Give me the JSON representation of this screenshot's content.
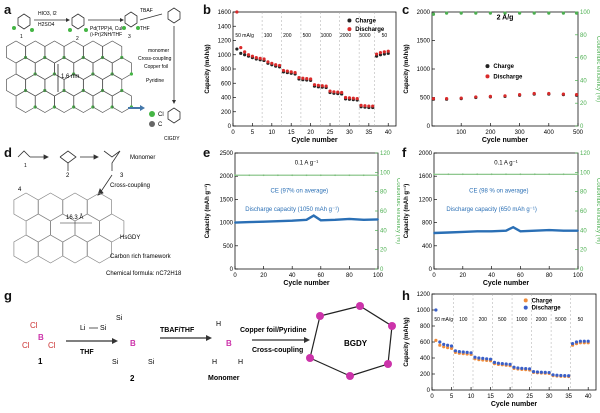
{
  "panel_labels": [
    "a",
    "b",
    "c",
    "d",
    "e",
    "f",
    "g",
    "h"
  ],
  "panel_a": {
    "reagents": [
      "HIO3, I2",
      "H2SO4",
      "Pd(TPP)4, CuI",
      "(i-Pr)2NH/THF",
      "TBAF",
      "THF",
      "monomer",
      "Copper foil",
      "Pyridine",
      "Cross-coupling"
    ],
    "compounds": [
      "1",
      "2",
      "3",
      "ClGDY"
    ],
    "distance": "1.6 nm",
    "legend": [
      {
        "symbol": "Cl",
        "color": "#44b544"
      },
      {
        "symbol": "C",
        "color": "#666666"
      }
    ],
    "arrow": "= Cl  = C"
  },
  "panel_d": {
    "labels": [
      "Monomer",
      "Cross-coupling",
      "HsGDY",
      "Carbon rich framework",
      "Chemical formula: nC72H18"
    ],
    "distance": "16.3 Å",
    "numbers": [
      "1",
      "2",
      "3",
      "4"
    ]
  },
  "panel_g": {
    "steps": [
      "TBAF/THF",
      "Copper foil/Pyridine",
      "Cross-coupling",
      "THF"
    ],
    "names": [
      "Monomer",
      "BGDY"
    ],
    "numbers": [
      "1",
      "2"
    ],
    "atoms": [
      "B",
      "Cl",
      "Li",
      "Si",
      "H"
    ]
  },
  "chart_data": [
    {
      "id": "b",
      "type": "scatter",
      "ylabel": "Capacity (mAh/g)",
      "xlabel": "Cycle number",
      "xlim": [
        0,
        42
      ],
      "ylim": [
        0,
        1600
      ],
      "xticks": [
        0,
        5,
        10,
        15,
        20,
        25,
        30,
        35,
        40
      ],
      "yticks": [
        0,
        200,
        400,
        600,
        800,
        1000,
        1200,
        1400,
        1600
      ],
      "rate_labels": [
        "50 mA/g",
        "100",
        "200",
        "500",
        "1000",
        "2000",
        "5000",
        "50"
      ],
      "series": [
        {
          "name": "Charge",
          "color": "#222222",
          "x": [
            1,
            2,
            3,
            4,
            5,
            6,
            7,
            8,
            9,
            10,
            11,
            12,
            13,
            14,
            15,
            16,
            17,
            18,
            19,
            20,
            21,
            22,
            23,
            24,
            25,
            26,
            27,
            28,
            29,
            30,
            31,
            32,
            33,
            34,
            35,
            36,
            37,
            38,
            39,
            40
          ],
          "y": [
            1080,
            1020,
            1000,
            980,
            960,
            940,
            930,
            920,
            880,
            860,
            840,
            830,
            760,
            750,
            740,
            730,
            660,
            650,
            645,
            640,
            560,
            550,
            545,
            540,
            470,
            460,
            455,
            450,
            380,
            375,
            370,
            365,
            270,
            265,
            260,
            260,
            980,
            1000,
            1010,
            1020
          ]
        },
        {
          "name": "Discharge",
          "color": "#d92a2a",
          "x": [
            1,
            2,
            3,
            4,
            5,
            6,
            7,
            8,
            9,
            10,
            11,
            12,
            13,
            14,
            15,
            16,
            17,
            18,
            19,
            20,
            21,
            22,
            23,
            24,
            25,
            26,
            27,
            28,
            29,
            30,
            31,
            32,
            33,
            34,
            35,
            36,
            37,
            38,
            39,
            40
          ],
          "y": [
            1600,
            1100,
            1040,
            1000,
            980,
            960,
            950,
            940,
            900,
            880,
            860,
            850,
            780,
            770,
            760,
            750,
            680,
            670,
            665,
            660,
            580,
            570,
            565,
            560,
            490,
            480,
            475,
            470,
            400,
            395,
            390,
            385,
            290,
            285,
            280,
            280,
            1010,
            1030,
            1040,
            1050
          ]
        }
      ]
    },
    {
      "id": "c",
      "type": "scatter",
      "annotation": "2 A/g",
      "ylabel": "Capacity (mAh/g)",
      "y2label": "Coulombic efficiency (%)",
      "xlabel": "Cycle number",
      "xlim": [
        0,
        500
      ],
      "ylim": [
        0,
        2000
      ],
      "y2lim": [
        0,
        100
      ],
      "xticks": [
        100,
        200,
        300,
        400,
        500
      ],
      "yticks": [
        0,
        500,
        1000,
        1500,
        2000
      ],
      "y2ticks": [
        0,
        20,
        40,
        60,
        80,
        100
      ],
      "series": [
        {
          "name": "Charge",
          "color": "#222222",
          "x": [
            5,
            50,
            100,
            150,
            200,
            250,
            300,
            350,
            400,
            450,
            495
          ],
          "y": [
            470,
            470,
            480,
            500,
            510,
            520,
            540,
            560,
            560,
            550,
            540
          ]
        },
        {
          "name": "Discharge",
          "color": "#d92a2a",
          "x": [
            5,
            50,
            100,
            150,
            200,
            250,
            300,
            350,
            400,
            450,
            495
          ],
          "y": [
            480,
            480,
            490,
            510,
            520,
            530,
            550,
            570,
            570,
            560,
            550
          ]
        },
        {
          "name": "CE",
          "color": "#4caf50",
          "axis": "y2",
          "x": [
            5,
            50,
            100,
            150,
            200,
            250,
            300,
            350,
            400,
            450,
            495
          ],
          "y": [
            98,
            99,
            99,
            99,
            99,
            99,
            99,
            99,
            99,
            99,
            99
          ]
        }
      ]
    },
    {
      "id": "e",
      "type": "line",
      "annotation": "0.1 A g⁻¹",
      "ce_label": "CE (97% on average)",
      "cap_label": "Discharge capacity (1050 mAh g⁻¹)",
      "ylabel": "Capacity (mAh g⁻¹)",
      "y2label": "Coulombic efficiency (%)",
      "xlabel": "Cycle number",
      "xlim": [
        0,
        100
      ],
      "ylim": [
        0,
        2500
      ],
      "y2lim": [
        0,
        120
      ],
      "xticks": [
        0,
        20,
        40,
        60,
        80,
        100
      ],
      "yticks": [
        0,
        500,
        1000,
        1500,
        2000,
        2500
      ],
      "y2ticks": [
        0,
        20,
        40,
        60,
        80,
        100,
        120
      ],
      "series": [
        {
          "name": "Capacity",
          "color": "#2a6fb5",
          "x": [
            0,
            10,
            20,
            30,
            40,
            50,
            55,
            60,
            70,
            80,
            90,
            100
          ],
          "y": [
            1000,
            1010,
            1020,
            1030,
            1040,
            1060,
            1150,
            1050,
            1060,
            1080,
            1060,
            1070
          ]
        },
        {
          "name": "CE",
          "color": "#7fbf7f",
          "axis": "y2",
          "x": [
            0,
            10,
            20,
            30,
            40,
            50,
            60,
            70,
            80,
            90,
            100
          ],
          "y": [
            97,
            97,
            97,
            97,
            97,
            97,
            97,
            97,
            97,
            97,
            97
          ]
        }
      ]
    },
    {
      "id": "f",
      "type": "line",
      "annotation": "0.1 A g⁻¹",
      "ce_label": "CE (98 % on average)",
      "cap_label": "Discharge capacity (650 mAh g⁻¹)",
      "ylabel": "Capacity (mAh g⁻¹)",
      "y2label": "Coulombic efficiency (%)",
      "xlabel": "Cycle number",
      "xlim": [
        0,
        100
      ],
      "ylim": [
        0,
        2000
      ],
      "y2lim": [
        0,
        120
      ],
      "xticks": [
        0,
        20,
        40,
        60,
        80,
        100
      ],
      "yticks": [
        0,
        400,
        800,
        1200,
        1600,
        2000
      ],
      "y2ticks": [
        0,
        20,
        40,
        60,
        80,
        100,
        120
      ],
      "series": [
        {
          "name": "Capacity",
          "color": "#2a6fb5",
          "x": [
            0,
            10,
            20,
            30,
            40,
            50,
            55,
            60,
            70,
            80,
            90,
            100
          ],
          "y": [
            620,
            630,
            640,
            650,
            650,
            660,
            720,
            650,
            660,
            670,
            660,
            660
          ]
        },
        {
          "name": "CE",
          "color": "#7fbf7f",
          "axis": "y2",
          "x": [
            0,
            10,
            20,
            30,
            40,
            50,
            60,
            70,
            80,
            90,
            100
          ],
          "y": [
            98,
            98,
            98,
            98,
            98,
            98,
            98,
            98,
            98,
            98,
            98
          ]
        }
      ]
    },
    {
      "id": "h",
      "type": "scatter",
      "ylabel": "Capacity (mAh/g)",
      "xlabel": "Cycle number",
      "xlim": [
        0,
        42
      ],
      "ylim": [
        0,
        1200
      ],
      "xticks": [
        0,
        5,
        10,
        15,
        20,
        25,
        30,
        35,
        40
      ],
      "yticks": [
        0,
        200,
        400,
        600,
        800,
        1000,
        1200
      ],
      "rate_labels": [
        "50 mA/g",
        "100",
        "200",
        "500",
        "1000",
        "2000",
        "5000",
        "50"
      ],
      "series": [
        {
          "name": "Charge",
          "color": "#f08c3a",
          "x": [
            1,
            2,
            3,
            4,
            5,
            6,
            7,
            8,
            9,
            10,
            11,
            12,
            13,
            14,
            15,
            16,
            17,
            18,
            19,
            20,
            21,
            22,
            23,
            24,
            25,
            26,
            27,
            28,
            29,
            30,
            31,
            32,
            33,
            34,
            35,
            36,
            37,
            38,
            39,
            40
          ],
          "y": [
            620,
            560,
            540,
            530,
            520,
            470,
            460,
            455,
            450,
            445,
            390,
            380,
            375,
            370,
            365,
            330,
            320,
            315,
            310,
            305,
            270,
            262,
            258,
            255,
            250,
            220,
            215,
            212,
            210,
            208,
            180,
            175,
            172,
            170,
            168,
            560,
            580,
            590,
            590,
            590
          ]
        },
        {
          "name": "Discharge",
          "color": "#3a5fc8",
          "x": [
            1,
            2,
            3,
            4,
            5,
            6,
            7,
            8,
            9,
            10,
            11,
            12,
            13,
            14,
            15,
            16,
            17,
            18,
            19,
            20,
            21,
            22,
            23,
            24,
            25,
            26,
            27,
            28,
            29,
            30,
            31,
            32,
            33,
            34,
            35,
            36,
            37,
            38,
            39,
            40
          ],
          "y": [
            1000,
            600,
            570,
            560,
            550,
            490,
            480,
            475,
            470,
            465,
            410,
            400,
            395,
            390,
            385,
            345,
            335,
            330,
            325,
            320,
            285,
            275,
            270,
            268,
            265,
            230,
            225,
            222,
            220,
            218,
            190,
            185,
            182,
            180,
            178,
            580,
            600,
            610,
            610,
            610
          ]
        }
      ]
    }
  ]
}
